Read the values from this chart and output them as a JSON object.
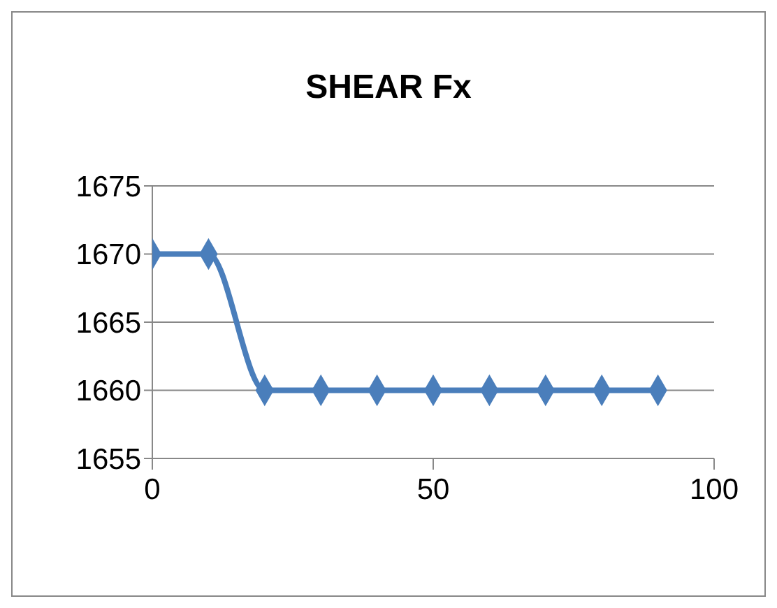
{
  "chart_data": {
    "type": "line",
    "title": "SHEAR Fx",
    "x": [
      0,
      10,
      20,
      30,
      40,
      50,
      60,
      70,
      80,
      90
    ],
    "series": [
      {
        "color": "#4a7ebb",
        "values": [
          1670,
          1670,
          1660,
          1660,
          1660,
          1660,
          1660,
          1660,
          1660,
          1660
        ]
      }
    ],
    "xlim": [
      0,
      100
    ],
    "xticks": [
      0,
      50,
      100
    ],
    "ylim": [
      1655,
      1675
    ],
    "yticks": [
      1655,
      1660,
      1665,
      1670,
      1675
    ],
    "grid": "y",
    "marker": "diamond",
    "line_style": "solid",
    "legend": false
  }
}
